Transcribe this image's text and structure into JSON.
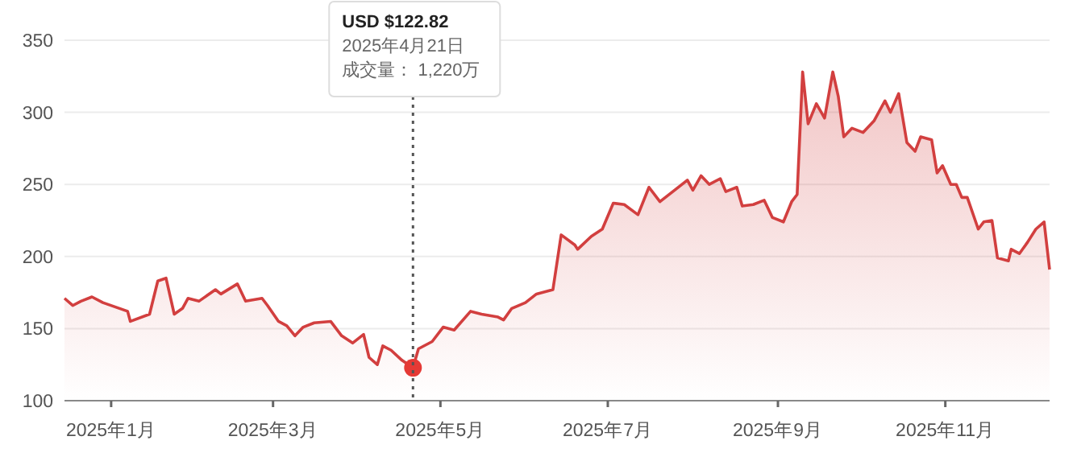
{
  "chart_data": {
    "type": "area",
    "xlim": [
      "2024-12-15",
      "2025-12-09"
    ],
    "ylim": [
      100,
      350
    ],
    "yticks": [
      100,
      150,
      200,
      250,
      300,
      350
    ],
    "xticks": [
      {
        "value": "2025-01-01",
        "label": "2025年1月"
      },
      {
        "value": "2025-03-01",
        "label": "2025年3月"
      },
      {
        "value": "2025-05-01",
        "label": "2025年5月"
      },
      {
        "value": "2025-07-01",
        "label": "2025年7月"
      },
      {
        "value": "2025-09-01",
        "label": "2025年9月"
      },
      {
        "value": "2025-11-01",
        "label": "2025年11月"
      }
    ],
    "grid": "y",
    "series": [
      {
        "color": "#d23f3f",
        "x": [
          "2024-12-15",
          "2024-12-18",
          "2024-12-21",
          "2024-12-25",
          "2024-12-29",
          "2025-01-07",
          "2025-01-08",
          "2025-01-15",
          "2025-01-18",
          "2025-01-21",
          "2025-01-24",
          "2025-01-27",
          "2025-01-29",
          "2025-02-02",
          "2025-02-08",
          "2025-02-10",
          "2025-02-16",
          "2025-02-19",
          "2025-02-25",
          "2025-02-27",
          "2025-03-03",
          "2025-03-06",
          "2025-03-09",
          "2025-03-12",
          "2025-03-16",
          "2025-03-22",
          "2025-03-26",
          "2025-03-30",
          "2025-04-03",
          "2025-04-05",
          "2025-04-08",
          "2025-04-10",
          "2025-04-13",
          "2025-04-17",
          "2025-04-21",
          "2025-04-23",
          "2025-04-28",
          "2025-05-02",
          "2025-05-06",
          "2025-05-12",
          "2025-05-16",
          "2025-05-22",
          "2025-05-24",
          "2025-05-27",
          "2025-06-01",
          "2025-06-05",
          "2025-06-11",
          "2025-06-14",
          "2025-06-19",
          "2025-06-20",
          "2025-06-25",
          "2025-06-29",
          "2025-07-03",
          "2025-07-07",
          "2025-07-12",
          "2025-07-16",
          "2025-07-20",
          "2025-07-26",
          "2025-07-30",
          "2025-08-01",
          "2025-08-04",
          "2025-08-07",
          "2025-08-11",
          "2025-08-13",
          "2025-08-17",
          "2025-08-19",
          "2025-08-23",
          "2025-08-27",
          "2025-08-30",
          "2025-09-03",
          "2025-09-06",
          "2025-09-08",
          "2025-09-10",
          "2025-09-12",
          "2025-09-15",
          "2025-09-18",
          "2025-09-21",
          "2025-09-23",
          "2025-09-25",
          "2025-09-28",
          "2025-10-02",
          "2025-10-06",
          "2025-10-10",
          "2025-10-12",
          "2025-10-15",
          "2025-10-18",
          "2025-10-21",
          "2025-10-23",
          "2025-10-27",
          "2025-10-29",
          "2025-10-31",
          "2025-11-03",
          "2025-11-05",
          "2025-11-07",
          "2025-11-09",
          "2025-11-13",
          "2025-11-15",
          "2025-11-18",
          "2025-11-20",
          "2025-11-24",
          "2025-11-25",
          "2025-11-28",
          "2025-12-01",
          "2025-12-04",
          "2025-12-07",
          "2025-12-09"
        ],
        "values": [
          171,
          166,
          169,
          172,
          168,
          162,
          155,
          160,
          183,
          185,
          160,
          164,
          171,
          169,
          177,
          174,
          181,
          169,
          171,
          166,
          155,
          152,
          145,
          151,
          154,
          155,
          145,
          140,
          146,
          130,
          125,
          138,
          135,
          128,
          122.82,
          136,
          141,
          151,
          149,
          162,
          160,
          158,
          156,
          164,
          168,
          174,
          177,
          215,
          208,
          205,
          214,
          219,
          237,
          236,
          229,
          248,
          238,
          247,
          253,
          246,
          256,
          250,
          254,
          245,
          248,
          235,
          236,
          239,
          227,
          224,
          238,
          243,
          328,
          292,
          306,
          296,
          328,
          311,
          283,
          289,
          286,
          294,
          308,
          300,
          313,
          279,
          273,
          283,
          281,
          258,
          263,
          250,
          250,
          241,
          241,
          219,
          224,
          225,
          199,
          197,
          205,
          202,
          210,
          219,
          224,
          191
        ]
      },
      {
        "type": "scatter",
        "color": "#e53935",
        "marker": "circle",
        "x": [
          "2025-04-21"
        ],
        "values": [
          122.82
        ]
      }
    ],
    "ref_lines": [
      {
        "axis": "x",
        "value": "2025-04-21",
        "color": "#555555",
        "line_style": "dotted"
      }
    ],
    "annotations": [
      "USD $122.82",
      "2025年4月21日",
      "成交量：  1,220万"
    ]
  }
}
